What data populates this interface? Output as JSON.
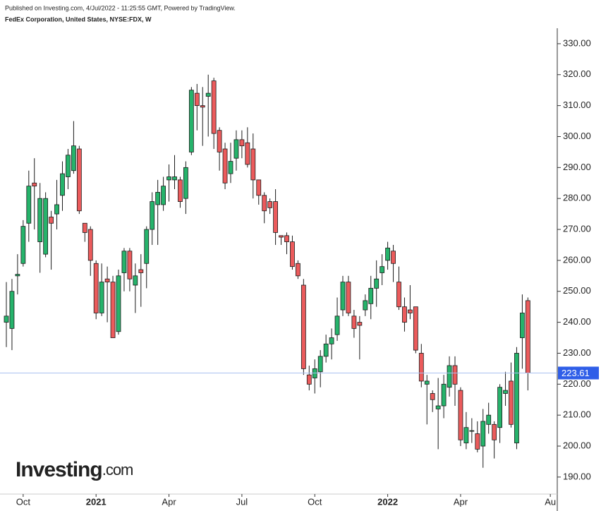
{
  "header": {
    "published": "Published on Investing.com, 4/Jul/2022 - 11:25:55 GMT, Powered by TradingView.",
    "symbol": "FedEx Corporation, United States, NYSE:FDX, W"
  },
  "logo": {
    "name": "Investing",
    "suffix": ".com"
  },
  "chart_data": {
    "type": "candlestick",
    "categories": [
      null,
      null,
      null,
      "Oct",
      null,
      null,
      null,
      null,
      null,
      null,
      null,
      null,
      null,
      null,
      null,
      null,
      "2021",
      null,
      null,
      null,
      null,
      null,
      null,
      null,
      null,
      null,
      null,
      null,
      null,
      "Apr",
      null,
      null,
      null,
      null,
      null,
      null,
      null,
      null,
      null,
      null,
      null,
      null,
      "Jul",
      null,
      null,
      null,
      null,
      null,
      null,
      null,
      null,
      null,
      null,
      null,
      null,
      "Oct",
      null,
      null,
      null,
      null,
      null,
      null,
      null,
      null,
      null,
      null,
      null,
      null,
      "2022",
      null,
      null,
      null,
      null,
      null,
      null,
      null,
      null,
      null,
      null,
      null,
      null,
      "Apr",
      null,
      null,
      null,
      null,
      null,
      null,
      null,
      null,
      null,
      null,
      null,
      null,
      null,
      null,
      null,
      "Au"
    ],
    "open": [
      240,
      238,
      255,
      259,
      272,
      285,
      266,
      262,
      274,
      275,
      281,
      287,
      289,
      296,
      272,
      270,
      259,
      243,
      254,
      253,
      237,
      256,
      263,
      252,
      257,
      259,
      270,
      278,
      278,
      286,
      286,
      286,
      280,
      295,
      314,
      310,
      313,
      318,
      302,
      296,
      288,
      293,
      299,
      298,
      296,
      286,
      281,
      279,
      279,
      268,
      268,
      266,
      259,
      252,
      223,
      222,
      224,
      229,
      233,
      236,
      244,
      253,
      242,
      240,
      244,
      246,
      251,
      256,
      260,
      263,
      253,
      245,
      244,
      245,
      230,
      220,
      217,
      212,
      213,
      219,
      226,
      218,
      201,
      205,
      204,
      200,
      207,
      207,
      206,
      217,
      221,
      201,
      235,
      247,
      null,
      null,
      null,
      null
    ],
    "high": [
      253,
      254,
      262,
      273,
      289,
      293,
      285,
      282,
      276,
      286,
      292,
      296,
      305,
      297,
      272,
      271,
      260,
      259,
      258,
      255,
      257,
      264,
      264,
      259,
      262,
      271,
      282,
      286,
      287,
      291,
      294,
      287,
      292,
      316,
      317,
      316,
      320,
      319,
      303,
      298,
      298,
      302,
      302,
      303,
      301,
      286,
      282,
      280,
      283,
      268,
      269,
      268,
      260,
      254,
      226,
      228,
      231,
      236,
      238,
      248,
      255,
      255,
      244,
      242,
      249,
      255,
      260,
      262,
      266,
      265,
      258,
      248,
      252,
      245,
      233,
      223,
      218,
      222,
      223,
      229,
      229,
      219,
      211,
      209,
      208,
      212,
      214,
      208,
      220,
      224,
      227,
      232,
      249,
      248,
      null,
      null,
      null,
      null
    ],
    "low": [
      232,
      231,
      249,
      258,
      266,
      270,
      256,
      261,
      257,
      270,
      276,
      283,
      288,
      275,
      266,
      255,
      241,
      242,
      240,
      235,
      236,
      250,
      250,
      243,
      245,
      251,
      265,
      265,
      276,
      279,
      283,
      277,
      275,
      294,
      302,
      297,
      300,
      296,
      289,
      283,
      285,
      289,
      293,
      290,
      280,
      278,
      272,
      275,
      265,
      265,
      262,
      257,
      254,
      223,
      218,
      217,
      219,
      227,
      228,
      234,
      242,
      242,
      235,
      228,
      242,
      241,
      245,
      252,
      257,
      253,
      244,
      237,
      241,
      230,
      219,
      207,
      211,
      199,
      209,
      216,
      213,
      200,
      199,
      201,
      198,
      193,
      204,
      196,
      201,
      213,
      206,
      199,
      225,
      218,
      null,
      null,
      null,
      null
    ],
    "close": [
      242,
      250,
      255.5,
      271,
      284,
      284,
      280,
      280,
      272,
      278,
      288,
      294,
      297,
      276,
      269,
      260,
      243,
      253,
      253,
      235,
      255,
      263,
      254,
      255,
      256,
      270,
      279,
      282,
      284,
      287,
      287,
      279,
      290,
      315,
      310,
      309.5,
      314,
      301,
      295,
      285,
      292,
      299,
      297,
      291,
      286,
      281,
      276,
      277,
      269,
      267.5,
      266,
      258,
      255,
      225,
      220,
      225,
      229,
      233,
      235,
      242,
      253,
      243,
      238,
      239,
      247,
      251,
      254,
      258,
      264,
      259,
      245,
      240,
      243,
      231,
      221,
      221,
      215,
      213,
      220,
      226,
      220,
      202,
      206,
      205,
      199,
      208,
      210,
      202,
      219,
      218,
      207,
      230,
      243,
      223.61,
      null,
      null,
      null,
      null
    ],
    "up_color": "#26b36b",
    "down_color": "#eb5b5c",
    "edge_color": "#1a1a1a",
    "last_line_color": "#a8bff0",
    "last_label_color": "#2f5ee8",
    "ylim": [
      184.5,
      335
    ],
    "yticks": [
      {
        "value": 190,
        "label": "190.00"
      },
      {
        "value": 200,
        "label": "200.00"
      },
      {
        "value": 210,
        "label": "210.00"
      },
      {
        "value": 220,
        "label": "220.00"
      },
      {
        "value": 230,
        "label": "230.00"
      },
      {
        "value": 240,
        "label": "240.00"
      },
      {
        "value": 250,
        "label": "250.00"
      },
      {
        "value": 260,
        "label": "260.00"
      },
      {
        "value": 270,
        "label": "270.00"
      },
      {
        "value": 280,
        "label": "280.00"
      },
      {
        "value": 290,
        "label": "290.00"
      },
      {
        "value": 300,
        "label": "300.00"
      },
      {
        "value": 310,
        "label": "310.00"
      },
      {
        "value": 320,
        "label": "320.00"
      },
      {
        "value": 330,
        "label": "330.00"
      }
    ]
  }
}
